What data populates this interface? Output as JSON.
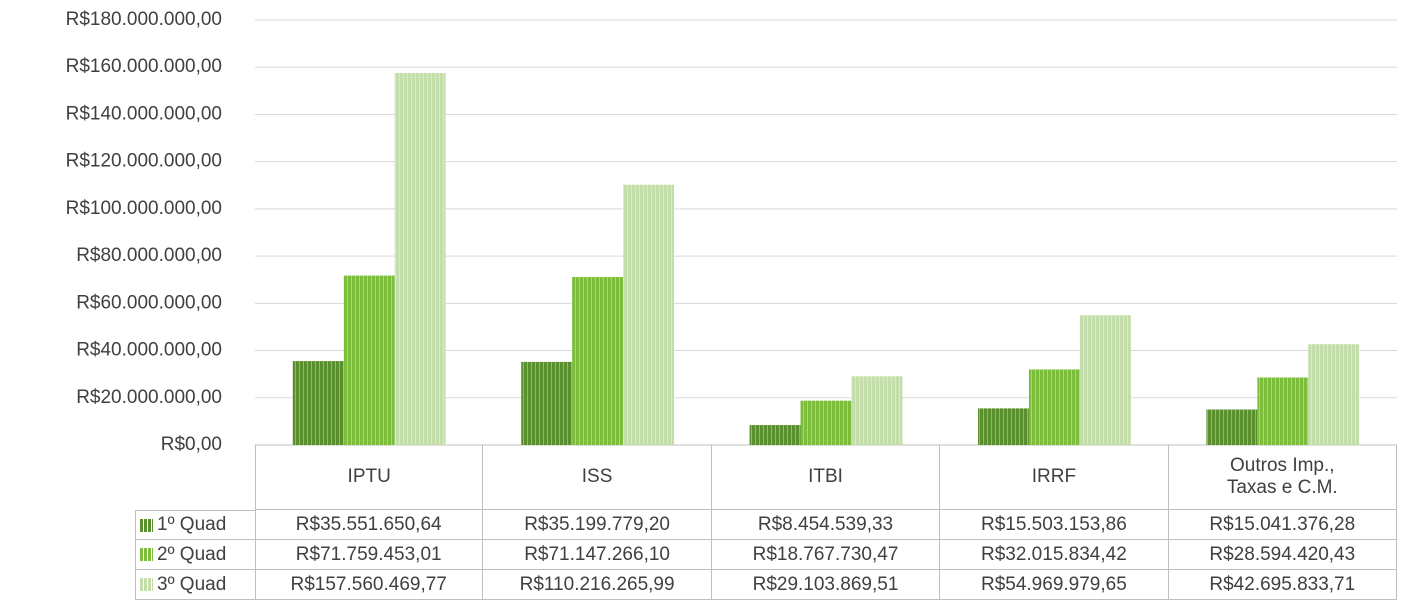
{
  "chart_data": {
    "type": "bar",
    "categories": [
      "IPTU",
      "ISS",
      "ITBI",
      "IRRF",
      "Outros Imp., Taxas e C.M."
    ],
    "series": [
      {
        "name": "1º Quad",
        "color": "#5a8f2e",
        "values": [
          35551650.64,
          35199779.2,
          8454539.33,
          15503153.86,
          15041376.28
        ],
        "value_labels": [
          "R$35.551.650,64",
          "R$35.199.779,20",
          "R$8.454.539,33",
          "R$15.503.153,86",
          "R$15.041.376,28"
        ]
      },
      {
        "name": "2º Quad",
        "color": "#7dbd3c",
        "values": [
          71759453.01,
          71147266.1,
          18767730.47,
          32015834.42,
          28594420.43
        ],
        "value_labels": [
          "R$71.759.453,01",
          "R$71.147.266,10",
          "R$18.767.730,47",
          "R$32.015.834,42",
          "R$28.594.420,43"
        ]
      },
      {
        "name": "3º Quad",
        "color": "#c3deaa",
        "values": [
          157560469.77,
          110216265.99,
          29103869.51,
          54969979.65,
          42695833.71
        ],
        "value_labels": [
          "R$157.560.469,77",
          "R$110.216.265,99",
          "R$29.103.869,51",
          "R$54.969.979,65",
          "R$42.695.833,71"
        ]
      }
    ],
    "ylim": [
      0,
      180000000
    ],
    "yticks": [
      {
        "value": 0,
        "label": "R$0,00"
      },
      {
        "value": 20000000,
        "label": "R$20.000.000,00"
      },
      {
        "value": 40000000,
        "label": "R$40.000.000,00"
      },
      {
        "value": 60000000,
        "label": "R$60.000.000,00"
      },
      {
        "value": 80000000,
        "label": "R$80.000.000,00"
      },
      {
        "value": 100000000,
        "label": "R$100.000.000,00"
      },
      {
        "value": 120000000,
        "label": "R$120.000.000,00"
      },
      {
        "value": 140000000,
        "label": "R$140.000.000,00"
      },
      {
        "value": 160000000,
        "label": "R$160.000.000,00"
      },
      {
        "value": 180000000,
        "label": "R$180.000.000,00"
      }
    ],
    "grid": true
  }
}
